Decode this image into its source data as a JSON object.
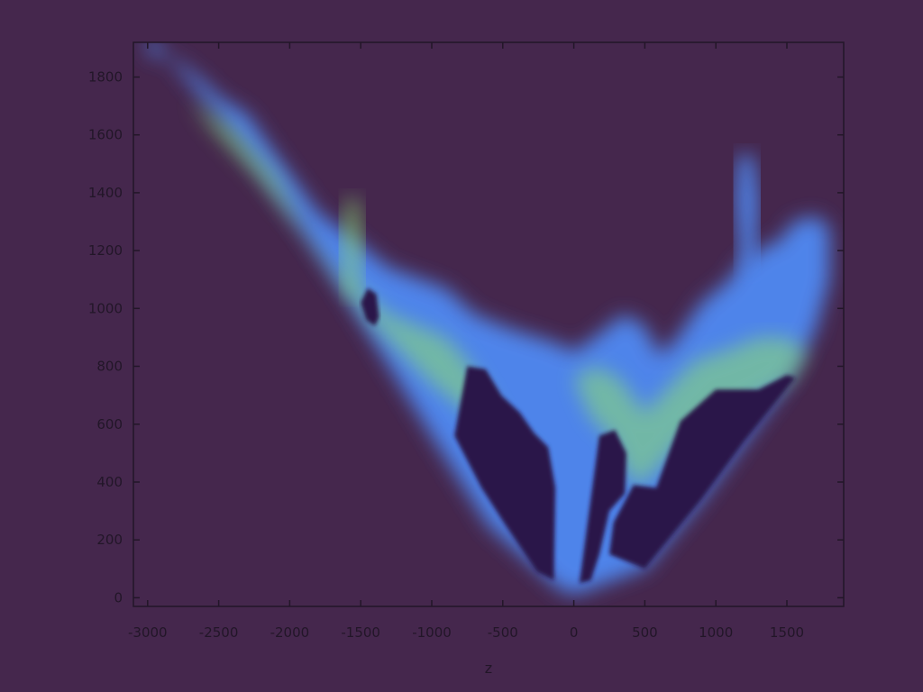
{
  "chart_data": {
    "type": "heatmap",
    "title": "",
    "xlabel": "z",
    "ylabel": "",
    "xlim": [
      -3100,
      1900
    ],
    "ylim": [
      -30,
      1920
    ],
    "grid": false,
    "x_ticks": [
      -3000,
      -2500,
      -2000,
      -1500,
      -1000,
      -500,
      0,
      500,
      1000,
      1500
    ],
    "x_tick_labels": [
      "-3000",
      "-2500",
      "-2000",
      "-1500",
      "-1000",
      "-500",
      "0",
      "500",
      "1000",
      "1500"
    ],
    "y_ticks": [
      0,
      200,
      400,
      600,
      800,
      1000,
      1200,
      1400,
      1600,
      1800
    ],
    "y_tick_labels": [
      "0",
      "200",
      "400",
      "600",
      "800",
      "1000",
      "1200",
      "1400",
      "1600",
      "1800"
    ],
    "colors": {
      "background": "#45274d",
      "low_density": "#2c1248",
      "mid_density": "#4f86ee",
      "high_density": "#8fe26f",
      "axis": "#221628"
    },
    "regions": [
      {
        "name": "outer density envelope",
        "level": "medium",
        "polygon": [
          [
            -2990,
            1880
          ],
          [
            -2800,
            1860
          ],
          [
            -2600,
            1780
          ],
          [
            -2500,
            1730
          ],
          [
            -2300,
            1670
          ],
          [
            -2130,
            1550
          ],
          [
            -1800,
            1330
          ],
          [
            -1600,
            1260
          ],
          [
            -1300,
            1140
          ],
          [
            -900,
            1070
          ],
          [
            -700,
            980
          ],
          [
            -450,
            930
          ],
          [
            -120,
            880
          ],
          [
            0,
            850
          ],
          [
            200,
            920
          ],
          [
            350,
            980
          ],
          [
            500,
            940
          ],
          [
            560,
            880
          ],
          [
            600,
            840
          ],
          [
            700,
            880
          ],
          [
            900,
            1020
          ],
          [
            1100,
            1100
          ],
          [
            1160,
            1150
          ],
          [
            1250,
            1180
          ],
          [
            1320,
            1210
          ],
          [
            1440,
            1230
          ],
          [
            1550,
            1300
          ],
          [
            1700,
            1320
          ],
          [
            1800,
            1280
          ],
          [
            1800,
            1100
          ],
          [
            1700,
            920
          ],
          [
            1500,
            740
          ],
          [
            1200,
            540
          ],
          [
            900,
            340
          ],
          [
            500,
            100
          ],
          [
            0,
            10
          ],
          [
            -100,
            30
          ],
          [
            -600,
            250
          ],
          [
            -1000,
            560
          ],
          [
            -1300,
            800
          ],
          [
            -1600,
            1040
          ],
          [
            -1900,
            1260
          ],
          [
            -2200,
            1470
          ],
          [
            -2500,
            1660
          ],
          [
            -2750,
            1810
          ],
          [
            -3000,
            1950
          ]
        ]
      },
      {
        "name": "left dense band",
        "level": "high",
        "polygon": [
          [
            -2700,
            1720
          ],
          [
            -2400,
            1620
          ],
          [
            -2100,
            1460
          ],
          [
            -1900,
            1270
          ],
          [
            -1700,
            1150
          ],
          [
            -1300,
            980
          ],
          [
            -900,
            900
          ],
          [
            -750,
            820
          ],
          [
            -600,
            700
          ],
          [
            -450,
            560
          ],
          [
            -320,
            520
          ],
          [
            -260,
            470
          ],
          [
            -420,
            430
          ],
          [
            -650,
            600
          ],
          [
            -1000,
            740
          ],
          [
            -1400,
            940
          ],
          [
            -1800,
            1190
          ],
          [
            -2200,
            1440
          ],
          [
            -2550,
            1620
          ]
        ]
      },
      {
        "name": "right dense band",
        "level": "high",
        "polygon": [
          [
            0,
            760
          ],
          [
            150,
            800
          ],
          [
            320,
            760
          ],
          [
            500,
            640
          ],
          [
            650,
            720
          ],
          [
            850,
            820
          ],
          [
            1100,
            860
          ],
          [
            1300,
            900
          ],
          [
            1500,
            900
          ],
          [
            1650,
            850
          ],
          [
            1550,
            760
          ],
          [
            1350,
            700
          ],
          [
            1100,
            640
          ],
          [
            800,
            560
          ],
          [
            600,
            450
          ],
          [
            450,
            380
          ],
          [
            350,
            450
          ],
          [
            250,
            560
          ],
          [
            120,
            620
          ]
        ]
      },
      {
        "name": "upper-left vertical streak",
        "level": "high",
        "polygon": [
          [
            -1600,
            1380
          ],
          [
            -1520,
            1380
          ],
          [
            -1480,
            1250
          ],
          [
            -1520,
            1040
          ],
          [
            -1600,
            1040
          ],
          [
            -1640,
            1250
          ]
        ]
      },
      {
        "name": "upper-right vertical streak",
        "level": "medium",
        "polygon": [
          [
            1160,
            1530
          ],
          [
            1260,
            1530
          ],
          [
            1300,
            1380
          ],
          [
            1280,
            1120
          ],
          [
            1180,
            1120
          ],
          [
            1140,
            1380
          ]
        ]
      },
      {
        "name": "left hole",
        "level": "low",
        "polygon": [
          [
            -1450,
            1070
          ],
          [
            -1390,
            1050
          ],
          [
            -1370,
            970
          ],
          [
            -1400,
            940
          ],
          [
            -1460,
            960
          ],
          [
            -1500,
            1020
          ]
        ]
      },
      {
        "name": "left-center void",
        "level": "low",
        "polygon": [
          [
            -750,
            800
          ],
          [
            -620,
            790
          ],
          [
            -510,
            700
          ],
          [
            -380,
            640
          ],
          [
            -280,
            570
          ],
          [
            -180,
            520
          ],
          [
            -130,
            380
          ],
          [
            -140,
            60
          ],
          [
            -260,
            90
          ],
          [
            -480,
            250
          ],
          [
            -650,
            380
          ],
          [
            -840,
            560
          ]
        ]
      },
      {
        "name": "center void",
        "level": "low",
        "polygon": [
          [
            180,
            560
          ],
          [
            290,
            580
          ],
          [
            370,
            500
          ],
          [
            360,
            360
          ],
          [
            250,
            300
          ],
          [
            180,
            150
          ],
          [
            120,
            60
          ],
          [
            40,
            50
          ]
        ]
      },
      {
        "name": "right void",
        "level": "low",
        "polygon": [
          [
            420,
            390
          ],
          [
            580,
            380
          ],
          [
            750,
            610
          ],
          [
            1000,
            720
          ],
          [
            1300,
            720
          ],
          [
            1500,
            770
          ],
          [
            1560,
            760
          ],
          [
            1200,
            540
          ],
          [
            900,
            340
          ],
          [
            500,
            100
          ],
          [
            250,
            150
          ],
          [
            280,
            260
          ]
        ]
      }
    ]
  }
}
